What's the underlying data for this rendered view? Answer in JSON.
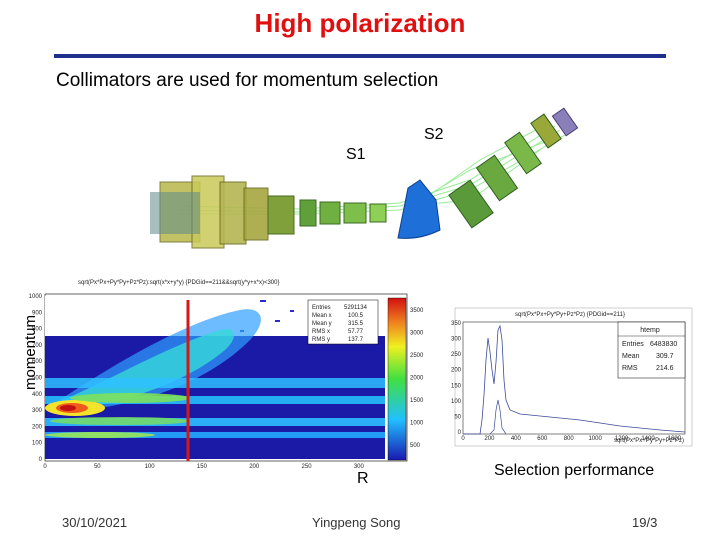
{
  "slide": {
    "title": "High polarization",
    "subtitle": "Collimators are used for momentum selection",
    "label_s1": "S1",
    "label_s2": "S2",
    "y_axis_label": "momentum",
    "label_r": "R",
    "selection_caption": "Selection performance",
    "footer_date": "30/10/2021",
    "footer_author": "Yingpeng Song",
    "footer_page": "19/3"
  },
  "heatmap_plot": {
    "header": "sqrt(Px*Px+Py*Py+Pz*Pz):sqrt(x*x+y*y) {PDGid==211&&sqrt(y*y+x*x)<300}",
    "y_ticks": [
      "1000",
      "900",
      "800",
      "700",
      "600",
      "500",
      "400",
      "300",
      "200",
      "100",
      "0"
    ],
    "x_ticks": [
      "0",
      "50",
      "100",
      "150",
      "200",
      "250",
      "300"
    ],
    "stats": [
      {
        "k": "Entries",
        "v": "5291134"
      },
      {
        "k": "Mean x",
        "v": "100.5"
      },
      {
        "k": "Mean y",
        "v": "315.5"
      },
      {
        "k": "RMS x",
        "v": "57.77"
      },
      {
        "k": "RMS y",
        "v": "137.7"
      }
    ],
    "palette_ticks": [
      "3500",
      "3000",
      "2500",
      "2000",
      "1500",
      "1000",
      "500"
    ],
    "colors": {
      "frame_bg": "#1a1aa6",
      "cut_line": "#d41818"
    }
  },
  "histogram_plot": {
    "header": "sqrt(Px*Px+Py*Py+Pz*Pz) {PDGid==211}",
    "name": "htemp",
    "stats": [
      {
        "k": "Entries",
        "v": "6483830"
      },
      {
        "k": "Mean",
        "v": "309.7"
      },
      {
        "k": "RMS",
        "v": "214.6"
      }
    ],
    "y_ticks": [
      "350",
      "300",
      "250",
      "200",
      "150",
      "100",
      "50",
      "0"
    ],
    "x_ticks": [
      "0",
      "200",
      "400",
      "600",
      "800",
      "1000",
      "1200",
      "1400",
      "1600"
    ],
    "x_label": "sqrt(Px*Px+Py*Py+Pz*Pz)",
    "colors": {
      "line": "#3b4a9a"
    }
  },
  "colors": {
    "title": "#e01010",
    "rule": "#1f2f8f"
  }
}
